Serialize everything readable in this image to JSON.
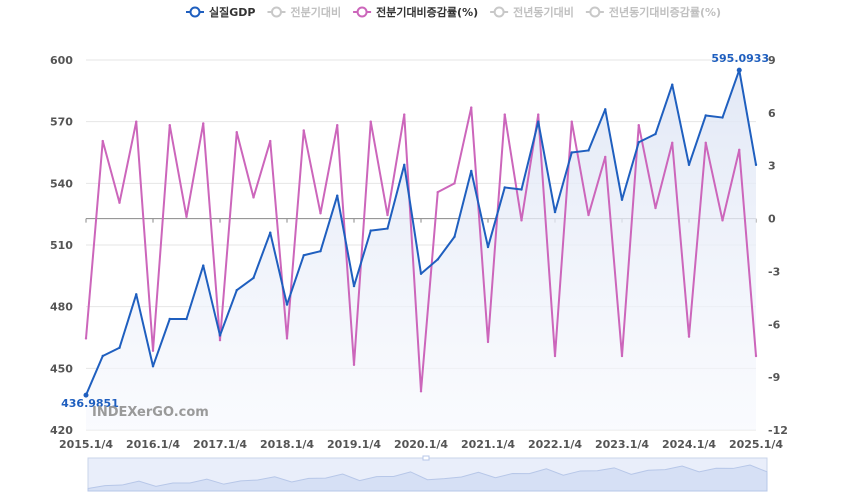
{
  "legend": [
    {
      "label": "실질GDP",
      "color": "#1f5fbf",
      "active": true
    },
    {
      "label": "전분기대비",
      "color": "#c8c8c8",
      "active": false
    },
    {
      "label": "전분기대비증감률(%)",
      "color": "#cc66bb",
      "active": true
    },
    {
      "label": "전년동기대비",
      "color": "#c8c8c8",
      "active": false
    },
    {
      "label": "전년동기대비증감률(%)",
      "color": "#c8c8c8",
      "active": false
    }
  ],
  "watermark": "INDEXerGO.com",
  "chart_data": {
    "type": "line",
    "title": "",
    "x": [
      "2015.1/4",
      "2015.2/4",
      "2015.3/4",
      "2015.4/4",
      "2016.1/4",
      "2016.2/4",
      "2016.3/4",
      "2016.4/4",
      "2017.1/4",
      "2017.2/4",
      "2017.3/4",
      "2017.4/4",
      "2018.1/4",
      "2018.2/4",
      "2018.3/4",
      "2018.4/4",
      "2019.1/4",
      "2019.2/4",
      "2019.3/4",
      "2019.4/4",
      "2020.1/4",
      "2020.2/4",
      "2020.3/4",
      "2020.4/4",
      "2021.1/4",
      "2021.2/4",
      "2021.3/4",
      "2021.4/4",
      "2022.1/4",
      "2022.2/4",
      "2022.3/4",
      "2022.4/4",
      "2023.1/4",
      "2023.2/4",
      "2023.3/4",
      "2023.4/4",
      "2024.1/4",
      "2024.2/4",
      "2024.3/4",
      "2024.4/4",
      "2025.1/4"
    ],
    "x_tick_labels": [
      "2015.1/4",
      "2016.1/4",
      "2017.1/4",
      "2018.1/4",
      "2019.1/4",
      "2020.1/4",
      "2021.1/4",
      "2022.1/4",
      "2023.1/4",
      "2024.1/4",
      "2025.1/4"
    ],
    "y_left": {
      "ticks": [
        420,
        450,
        480,
        510,
        540,
        570,
        600
      ],
      "ylim": [
        420,
        600
      ]
    },
    "y_right": {
      "ticks": [
        -12,
        -9,
        -6,
        -3,
        0,
        3,
        6,
        9
      ],
      "ylim": [
        -12,
        9
      ]
    },
    "series": [
      {
        "name": "실질GDP",
        "axis": "left",
        "color": "#1f5fbf",
        "area": true,
        "values": [
          436.9851,
          456,
          460,
          486,
          451,
          474,
          474,
          500,
          466,
          488,
          494,
          516,
          481,
          505,
          507,
          534,
          490,
          517,
          518,
          549,
          496,
          503,
          514,
          546,
          509,
          538,
          537,
          570,
          526,
          555,
          556,
          576,
          532,
          560,
          564,
          588,
          549,
          573,
          572,
          595.0933,
          549
        ]
      },
      {
        "name": "전분기대비증감률(%)",
        "axis": "right",
        "color": "#cc66bb",
        "area": false,
        "values": [
          -6.8,
          4.4,
          0.9,
          5.5,
          -7.5,
          5.3,
          0.1,
          5.4,
          -6.9,
          4.9,
          1.2,
          4.4,
          -6.8,
          5.0,
          0.3,
          5.3,
          -8.3,
          5.5,
          0.2,
          5.9,
          -9.8,
          1.5,
          2.0,
          6.3,
          -7.0,
          5.9,
          -0.1,
          5.9,
          -7.8,
          5.5,
          0.2,
          3.5,
          -7.8,
          5.3,
          0.6,
          4.3,
          -6.7,
          4.3,
          -0.1,
          3.9,
          -7.8
        ]
      }
    ],
    "annotations": [
      {
        "label": "595.0933",
        "series": 0,
        "index": 39
      },
      {
        "label": "436.9851",
        "series": 0,
        "index": 0
      }
    ],
    "grid": true,
    "legend_position": "top-center"
  }
}
